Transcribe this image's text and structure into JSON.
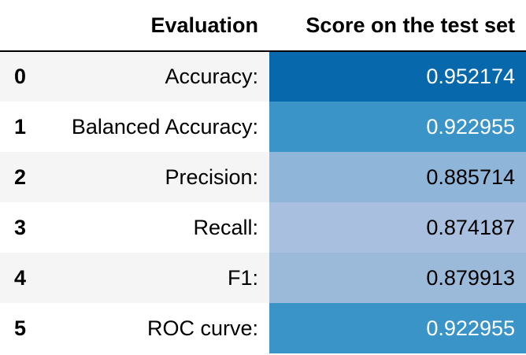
{
  "table": {
    "headers": {
      "index": "",
      "evaluation": "Evaluation",
      "score": "Score on the test set"
    },
    "rows": [
      {
        "index": "0",
        "evaluation": "Accuracy:",
        "score": "0.952174",
        "bg": "#0868ac",
        "fg": "#ffffff"
      },
      {
        "index": "1",
        "evaluation": "Balanced Accuracy:",
        "score": "0.922955",
        "bg": "#3a94c8",
        "fg": "#ffffff"
      },
      {
        "index": "2",
        "evaluation": "Precision:",
        "score": "0.885714",
        "bg": "#8fb5d8",
        "fg": "#000000"
      },
      {
        "index": "3",
        "evaluation": "Recall:",
        "score": "0.874187",
        "bg": "#a8bfdf",
        "fg": "#000000"
      },
      {
        "index": "4",
        "evaluation": "F1:",
        "score": "0.879913",
        "bg": "#9bbad9",
        "fg": "#000000"
      },
      {
        "index": "5",
        "evaluation": "ROC curve:",
        "score": "0.922955",
        "bg": "#3a94c8",
        "fg": "#ffffff"
      }
    ]
  }
}
